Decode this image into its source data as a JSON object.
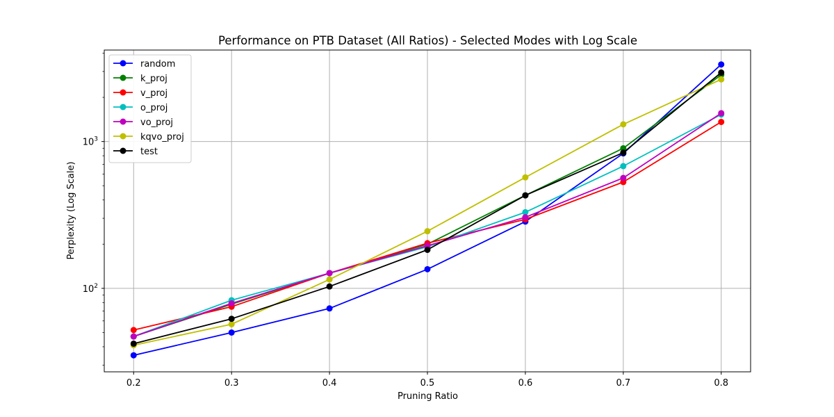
{
  "chart_data": {
    "type": "line",
    "title": "Performance on PTB Dataset (All Ratios) - Selected Modes with Log Scale",
    "xlabel": "Pruning Ratio",
    "ylabel": "Perplexity (Log Scale)",
    "xscale": "linear",
    "yscale": "log",
    "xlim": [
      0.17,
      0.83
    ],
    "ylim": [
      27,
      4200
    ],
    "grid": true,
    "legend_position": "upper-left",
    "x": [
      0.2,
      0.3,
      0.4,
      0.5,
      0.6,
      0.7,
      0.8
    ],
    "x_tick_labels": [
      "0.2",
      "0.3",
      "0.4",
      "0.5",
      "0.6",
      "0.7",
      "0.8"
    ],
    "y_major_ticks": [
      {
        "value": 100,
        "base": "10",
        "exp": "2"
      },
      {
        "value": 1000,
        "base": "10",
        "exp": "3"
      }
    ],
    "series": [
      {
        "name": "random",
        "color": "#0000ff",
        "values": [
          35,
          50,
          73,
          135,
          285,
          830,
          3350
        ]
      },
      {
        "name": "k_proj",
        "color": "#008000",
        "values": [
          47,
          78,
          127,
          200,
          430,
          900,
          2850
        ]
      },
      {
        "name": "v_proj",
        "color": "#ff0000",
        "values": [
          52,
          75,
          127,
          203,
          295,
          530,
          1360
        ]
      },
      {
        "name": "o_proj",
        "color": "#00bfbf",
        "values": [
          47,
          83,
          127,
          192,
          330,
          680,
          1530
        ]
      },
      {
        "name": "vo_proj",
        "color": "#bf00bf",
        "values": [
          47,
          79,
          127,
          195,
          305,
          565,
          1560
        ]
      },
      {
        "name": "kqvo_proj",
        "color": "#bfbf00",
        "values": [
          41,
          57,
          115,
          245,
          570,
          1310,
          2650
        ]
      },
      {
        "name": "test",
        "color": "#000000",
        "values": [
          42,
          62,
          103,
          183,
          430,
          840,
          2950
        ]
      }
    ]
  }
}
